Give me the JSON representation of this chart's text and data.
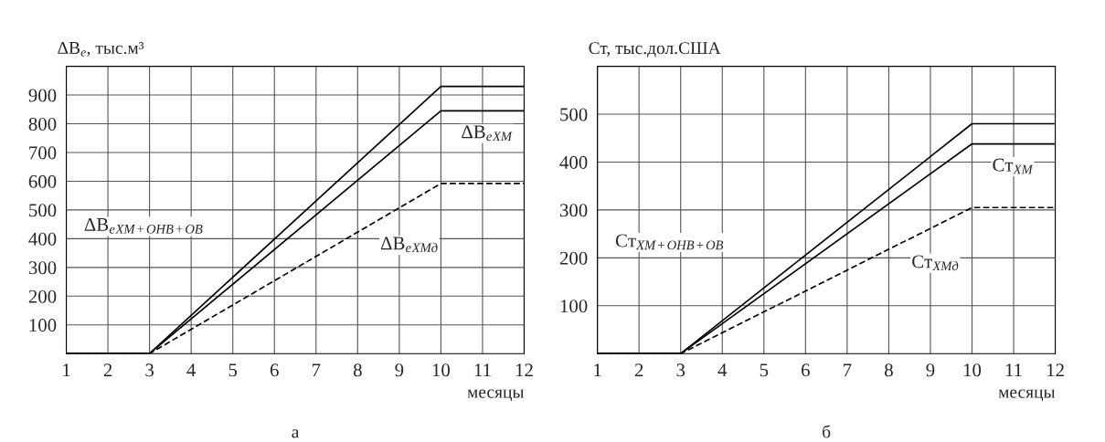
{
  "chart_data": [
    {
      "type": "line",
      "title": "а",
      "ylabel": "ΔB$_{e}$, тыс.м³",
      "xlabel": "месяцы",
      "x": [
        1,
        3,
        10,
        12
      ],
      "xlim": [
        1,
        12
      ],
      "xticks": [
        1,
        2,
        3,
        4,
        5,
        6,
        7,
        8,
        9,
        10,
        11,
        12
      ],
      "ylim": [
        0,
        1000
      ],
      "yticks": [
        100,
        200,
        300,
        400,
        500,
        600,
        700,
        800,
        900
      ],
      "grid": true,
      "legend": false,
      "marker": "none",
      "series": [
        {
          "name": "ΔB$_{e}$$_{ХМ+ОНВ+ОВ}$",
          "color": "#000000",
          "line_style": "solid",
          "values": [
            0,
            0,
            930,
            930
          ]
        },
        {
          "name": "ΔB$_{e}$$_{ХМ}$",
          "color": "#000000",
          "line_style": "solid",
          "values": [
            0,
            0,
            845,
            845
          ]
        },
        {
          "name": "ΔB$_{e}$$_{ХМд}$",
          "color": "#000000",
          "line_style": "dashed",
          "values": [
            0,
            0,
            592,
            592
          ]
        }
      ]
    },
    {
      "type": "line",
      "title": "б",
      "ylabel": "Ст, тыс.дол.США",
      "xlabel": "месяцы",
      "x": [
        1,
        3,
        10,
        12
      ],
      "xlim": [
        1,
        12
      ],
      "xticks": [
        1,
        2,
        3,
        4,
        5,
        6,
        7,
        8,
        9,
        10,
        11,
        12
      ],
      "ylim": [
        0,
        600
      ],
      "yticks": [
        100,
        200,
        300,
        400,
        500
      ],
      "grid": true,
      "legend": false,
      "marker": "none",
      "series": [
        {
          "name": "Ст$_{ХМ+ОНВ+ОВ}$",
          "color": "#000000",
          "line_style": "solid",
          "values": [
            0,
            0,
            480,
            480
          ]
        },
        {
          "name": "Ст$_{ХМ}$",
          "color": "#000000",
          "line_style": "solid",
          "values": [
            0,
            0,
            438,
            438
          ]
        },
        {
          "name": "Ст$_{ХМд}$",
          "color": "#000000",
          "line_style": "dashed",
          "values": [
            0,
            0,
            305,
            305
          ]
        }
      ]
    }
  ]
}
